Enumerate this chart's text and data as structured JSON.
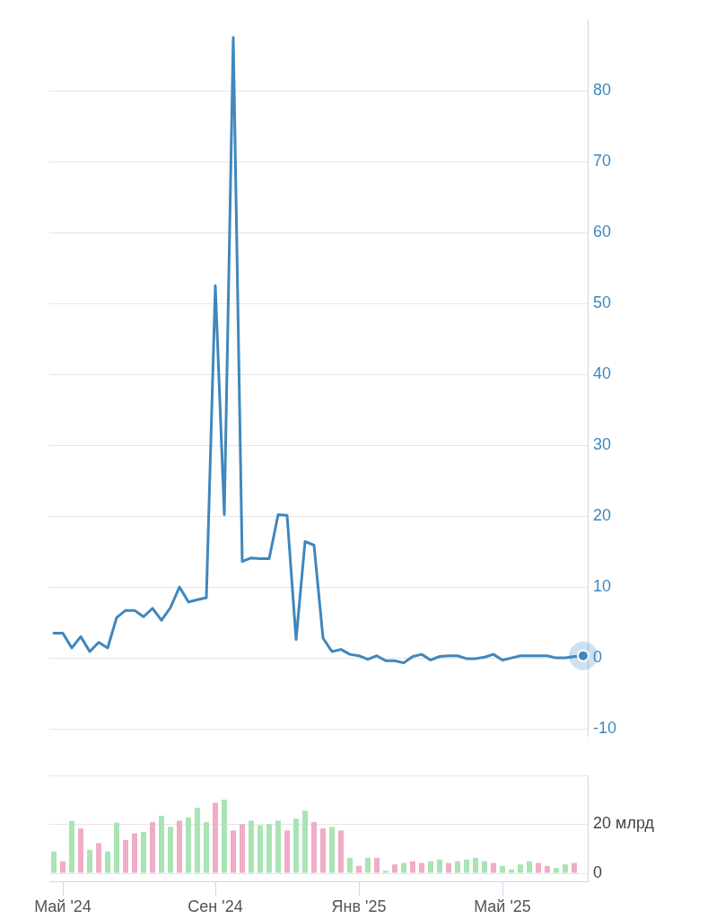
{
  "chart_data": [
    {
      "type": "line",
      "categories": [
        null,
        null,
        null,
        null,
        null,
        null,
        null,
        null,
        null,
        null,
        null,
        null,
        null,
        null,
        null,
        null,
        null,
        null,
        null,
        null,
        null,
        null,
        null,
        null,
        null,
        null,
        null,
        null,
        null,
        null,
        null,
        null,
        null,
        null,
        null,
        null,
        null,
        null,
        null,
        null,
        null,
        null,
        null,
        null,
        null,
        null,
        null,
        null,
        null,
        null,
        null,
        null,
        null,
        null,
        null,
        null,
        null,
        null,
        null,
        null
      ],
      "series": [
        {
          "color": "#3f87bd",
          "marker": "none",
          "values": [
            3.5,
            3.5,
            1.4,
            3.0,
            0.9,
            2.2,
            1.4,
            5.7,
            6.7,
            6.7,
            5.8,
            7.0,
            5.3,
            7.1,
            10.0,
            7.9,
            8.2,
            8.5,
            52.5,
            20.2,
            87.5,
            13.6,
            14.1,
            14.0,
            14.0,
            20.2,
            20.1,
            2.6,
            16.4,
            15.9,
            2.8,
            0.9,
            1.2,
            0.5,
            0.3,
            -0.2,
            0.3,
            -0.4,
            -0.4,
            -0.7,
            0.2,
            0.5,
            -0.3,
            0.2,
            0.3,
            0.3,
            -0.1,
            -0.1,
            0.1,
            0.5,
            -0.3,
            0.0,
            0.3,
            0.3,
            0.3,
            0.3,
            0.0,
            0.0,
            0.2,
            0.3
          ]
        },
        {
          "type": "scatter",
          "color": "#3f87bd",
          "marker": "circle",
          "values": [
            null,
            null,
            null,
            null,
            null,
            null,
            null,
            null,
            null,
            null,
            null,
            null,
            null,
            null,
            null,
            null,
            null,
            null,
            null,
            null,
            null,
            null,
            null,
            null,
            null,
            null,
            null,
            null,
            null,
            null,
            null,
            null,
            null,
            null,
            null,
            null,
            null,
            null,
            null,
            null,
            null,
            null,
            null,
            null,
            null,
            null,
            null,
            null,
            null,
            null,
            null,
            null,
            null,
            null,
            null,
            null,
            null,
            null,
            null,
            0.3
          ]
        }
      ],
      "ylim": [
        -11,
        90
      ],
      "yticks": [
        -10,
        0,
        10,
        20,
        30,
        40,
        50,
        60,
        70,
        80
      ],
      "grid": "y",
      "tick_labels": "y"
    },
    {
      "type": "bar",
      "categories": [
        null,
        "Май '24",
        null,
        null,
        null,
        null,
        null,
        null,
        null,
        null,
        null,
        null,
        null,
        null,
        null,
        null,
        null,
        null,
        "Сен '24",
        null,
        null,
        null,
        null,
        null,
        null,
        null,
        null,
        null,
        null,
        null,
        null,
        null,
        null,
        null,
        "Янв '25",
        null,
        null,
        null,
        null,
        null,
        null,
        null,
        null,
        null,
        null,
        null,
        null,
        null,
        null,
        null,
        "Май '25",
        null,
        null,
        null,
        null,
        null,
        null,
        null,
        null,
        null
      ],
      "values": [
        8.9,
        4.9,
        21.4,
        18.3,
        9.6,
        12.3,
        8.9,
        20.7,
        13.6,
        16.3,
        16.9,
        20.9,
        23.5,
        18.9,
        21.5,
        22.8,
        26.8,
        20.9,
        28.8,
        30.1,
        17.5,
        20.1,
        21.5,
        19.6,
        20.1,
        21.5,
        17.5,
        22.3,
        25.6,
        20.9,
        18.3,
        18.9,
        17.5,
        6.3,
        3.0,
        6.3,
        6.3,
        1.0,
        3.6,
        4.2,
        4.9,
        4.2,
        4.9,
        5.6,
        4.2,
        4.9,
        5.6,
        6.3,
        4.9,
        4.2,
        3.0,
        1.6,
        3.6,
        4.9,
        4.2,
        3.0,
        2.2,
        3.6,
        4.2,
        null
      ],
      "colors": [
        "#a9e4b5",
        "#efadc6",
        "#a9e4b5",
        "#efadc6",
        "#a9e4b5",
        "#efadc6",
        "#a9e4b5",
        "#a9e4b5",
        "#efadc6",
        "#efadc6",
        "#a9e4b5",
        "#efadc6",
        "#a9e4b5",
        "#a9e4b5",
        "#efadc6",
        "#a9e4b5",
        "#a9e4b5",
        "#a9e4b5",
        "#efadc6",
        "#a9e4b5",
        "#efadc6",
        "#efadc6",
        "#a9e4b5",
        "#a9e4b5",
        "#a9e4b5",
        "#a9e4b5",
        "#efadc6",
        "#a9e4b5",
        "#a9e4b5",
        "#efadc6",
        "#efadc6",
        "#a9e4b5",
        "#efadc6",
        "#a9e4b5",
        "#efadc6",
        "#a9e4b5",
        "#efadc6",
        "#a9e4b5",
        "#efadc6",
        "#a9e4b5",
        "#efadc6",
        "#efadc6",
        "#a9e4b5",
        "#a9e4b5",
        "#efadc6",
        "#a9e4b5",
        "#a9e4b5",
        "#a9e4b5",
        "#a9e4b5",
        "#efadc6",
        "#a9e4b5",
        "#a9e4b5",
        "#a9e4b5",
        "#a9e4b5",
        "#efadc6",
        "#efadc6",
        "#a9e4b5",
        "#a9e4b5",
        "#efadc6",
        null
      ],
      "ylim": [
        -3.3,
        40
      ],
      "yticks": [
        0,
        {
          "value": 20,
          "label": "20 млрд"
        },
        {
          "value": 40,
          "label": null
        }
      ],
      "grid": "y"
    }
  ]
}
